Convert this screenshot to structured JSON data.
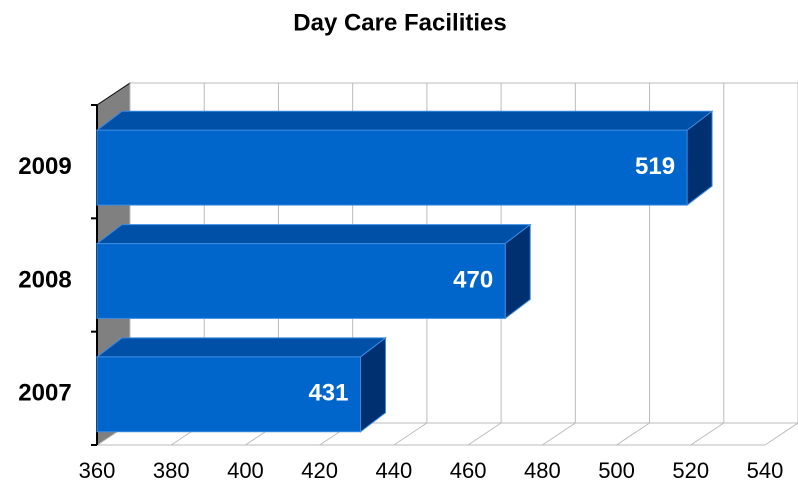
{
  "chart_data": {
    "type": "bar",
    "orientation": "horizontal",
    "title": "Day Care Facilities",
    "categories": [
      "2007",
      "2008",
      "2009"
    ],
    "values": [
      431,
      470,
      519
    ],
    "color": "#0066cc",
    "xlim": [
      360,
      540
    ],
    "xticks": [
      360,
      380,
      400,
      420,
      440,
      460,
      480,
      500,
      520,
      540
    ],
    "grid": true
  }
}
